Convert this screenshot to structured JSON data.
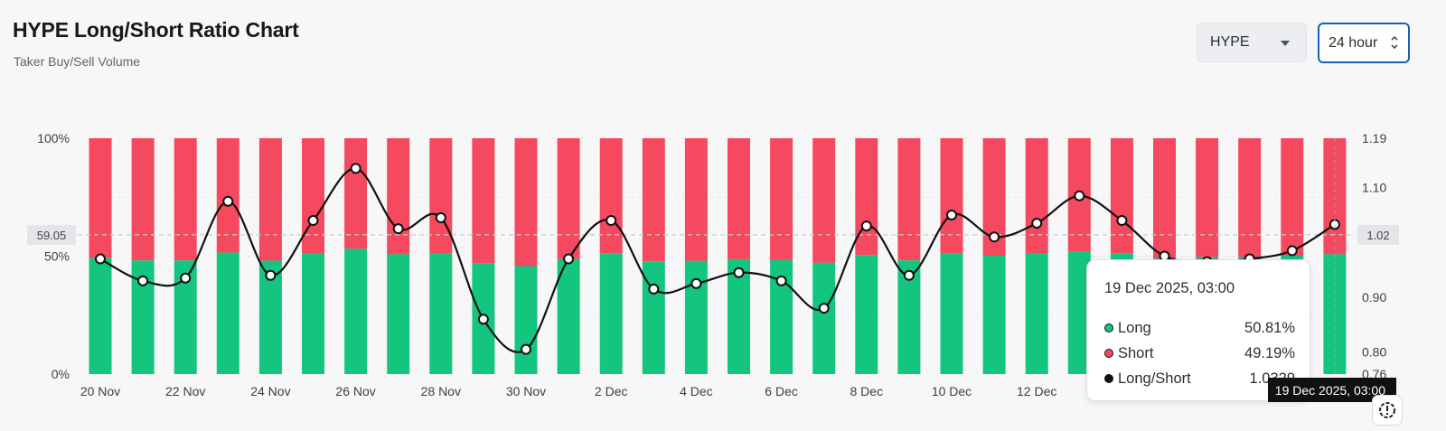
{
  "header": {
    "title": "HYPE Long/Short Ratio Chart",
    "subtitle": "Taker Buy/Sell Volume"
  },
  "controls": {
    "coin_select": "HYPE",
    "period_select": "24 hour"
  },
  "colors": {
    "long": "#13c57f",
    "short": "#f4495f",
    "ratio_line": "#111111",
    "reference_line": "#c9ccd1"
  },
  "chart_data": {
    "type": "bar",
    "title": "HYPE Long/Short Ratio Chart",
    "subtitle": "Taker Buy/Sell Volume",
    "x_tick_labels": [
      "20 Nov",
      "22 Nov",
      "24 Nov",
      "26 Nov",
      "28 Nov",
      "30 Nov",
      "2 Dec",
      "4 Dec",
      "6 Dec",
      "8 Dec",
      "10 Dec",
      "12 Dec"
    ],
    "left_axis": {
      "ylim": [
        0,
        100
      ],
      "ticks": [
        "0%",
        "50%",
        "100%"
      ],
      "unit": "%"
    },
    "right_axis": {
      "ylim": [
        0.76,
        1.19
      ],
      "ticks": [
        "0.76",
        "0.80",
        "0.90",
        "1.02",
        "1.10",
        "1.19"
      ]
    },
    "reference_value": 59.05,
    "reference_label": "59.05",
    "reference_right_label": "1.02",
    "series": [
      {
        "name": "Long",
        "unit": "%",
        "values": [
          49.2,
          48.2,
          48.2,
          51.5,
          48.1,
          51.0,
          53.1,
          50.8,
          51.0,
          47.0,
          45.8,
          48.7,
          51.2,
          47.8,
          48.0,
          48.7,
          48.3,
          47.2,
          50.5,
          48.2,
          51.2,
          50.2,
          51.0,
          51.8,
          51.3,
          49.0,
          49.5,
          49.5,
          50.2,
          50.81
        ]
      },
      {
        "name": "Short",
        "unit": "%",
        "values": [
          50.8,
          51.8,
          51.8,
          48.5,
          51.9,
          49.0,
          46.9,
          49.2,
          49.0,
          53.0,
          54.2,
          51.3,
          48.8,
          52.2,
          52.0,
          51.3,
          51.7,
          52.8,
          49.5,
          51.8,
          48.8,
          49.8,
          49.0,
          48.2,
          48.7,
          51.0,
          50.5,
          50.5,
          49.8,
          49.19
        ]
      },
      {
        "name": "Long/Short",
        "values": [
          0.97,
          0.93,
          0.935,
          1.075,
          0.94,
          1.04,
          1.135,
          1.025,
          1.045,
          0.86,
          0.805,
          0.97,
          1.04,
          0.915,
          0.925,
          0.945,
          0.93,
          0.88,
          1.03,
          0.94,
          1.05,
          1.01,
          1.035,
          1.085,
          1.04,
          0.975,
          0.965,
          0.97,
          0.985,
          1.0329
        ]
      }
    ],
    "tooltip": {
      "time": "19 Dec 2025, 03:00",
      "rows": [
        {
          "label": "Long",
          "value": "50.81%",
          "color": "#13c57f"
        },
        {
          "label": "Short",
          "value": "49.19%",
          "color": "#f4495f"
        },
        {
          "label": "Long/Short",
          "value": "1.0329",
          "color": "#111111"
        }
      ]
    },
    "crosshair_time_label": "19 Dec 2025, 03:00"
  }
}
